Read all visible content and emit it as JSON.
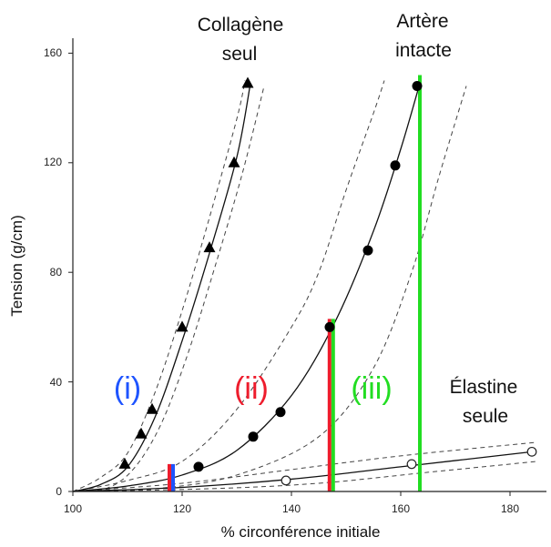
{
  "chart_data": {
    "type": "scatter",
    "xlabel": "% circonférence initiale",
    "ylabel": "Tension (g/cm)",
    "xlim": [
      100,
      185
    ],
    "ylim": [
      0,
      165
    ],
    "x_ticks": [
      "100",
      "120",
      "140",
      "160",
      "180"
    ],
    "y_ticks": [
      "0",
      "40",
      "80",
      "120",
      "160"
    ],
    "series": [
      {
        "name": "Collagène seul",
        "marker": "filled-triangle",
        "points": [
          [
            109.5,
            10
          ],
          [
            112.5,
            21
          ],
          [
            114.5,
            30
          ],
          [
            120,
            60
          ],
          [
            125,
            89
          ],
          [
            129.5,
            120
          ],
          [
            132,
            149
          ]
        ],
        "curve": [
          [
            100,
            0
          ],
          [
            105,
            2.5
          ],
          [
            110,
            9
          ],
          [
            115,
            27
          ],
          [
            120,
            55
          ],
          [
            125,
            87
          ],
          [
            130,
            122
          ],
          [
            132.5,
            149
          ]
        ],
        "band_upper": [
          [
            100,
            0
          ],
          [
            105,
            5
          ],
          [
            110,
            14
          ],
          [
            115,
            36
          ],
          [
            120,
            66
          ],
          [
            125,
            100
          ],
          [
            130,
            136
          ],
          [
            131.5,
            150
          ]
        ],
        "band_lower": [
          [
            100,
            0
          ],
          [
            106,
            1
          ],
          [
            111,
            8
          ],
          [
            116,
            24
          ],
          [
            121,
            50
          ],
          [
            126,
            82
          ],
          [
            131,
            116
          ],
          [
            135,
            148
          ]
        ]
      },
      {
        "name": "Artère intacte",
        "marker": "filled-circle",
        "points": [
          [
            123,
            9
          ],
          [
            133,
            20
          ],
          [
            138,
            29
          ],
          [
            147,
            60
          ],
          [
            154,
            88
          ],
          [
            159,
            119
          ],
          [
            163,
            148
          ]
        ],
        "curve": [
          [
            100,
            0
          ],
          [
            110,
            2
          ],
          [
            120,
            6
          ],
          [
            130,
            15
          ],
          [
            140,
            35
          ],
          [
            148,
            62
          ],
          [
            155,
            95
          ],
          [
            160,
            125
          ],
          [
            163.5,
            149
          ]
        ],
        "band_upper": [
          [
            100,
            0
          ],
          [
            110,
            4
          ],
          [
            120,
            11
          ],
          [
            130,
            30
          ],
          [
            140,
            60
          ],
          [
            145,
            80
          ],
          [
            150,
            110
          ],
          [
            155,
            138
          ],
          [
            157,
            150
          ]
        ],
        "band_lower": [
          [
            100,
            0
          ],
          [
            115,
            1
          ],
          [
            130,
            6
          ],
          [
            145,
            20
          ],
          [
            155,
            45
          ],
          [
            162,
            80
          ],
          [
            167,
            115
          ],
          [
            172,
            148
          ]
        ]
      },
      {
        "name": "Élastine seule",
        "marker": "open-circle",
        "points": [
          [
            139,
            4
          ],
          [
            162,
            10
          ],
          [
            184,
            14.5
          ]
        ],
        "curve": [
          [
            100,
            0
          ],
          [
            120,
            1.5
          ],
          [
            140,
            4.5
          ],
          [
            160,
            9
          ],
          [
            184,
            14.5
          ]
        ],
        "band_upper": [
          [
            100,
            0
          ],
          [
            120,
            3
          ],
          [
            140,
            8
          ],
          [
            160,
            13
          ],
          [
            185,
            18
          ]
        ],
        "band_lower": [
          [
            100,
            0
          ],
          [
            125,
            1
          ],
          [
            145,
            3
          ],
          [
            165,
            7
          ],
          [
            185,
            11
          ]
        ]
      }
    ],
    "curve_labels": [
      {
        "lines": [
          "Collagène",
          "seul"
        ]
      },
      {
        "lines": [
          "Artère",
          "intacte"
        ]
      },
      {
        "lines": [
          "Élastine",
          "seule"
        ]
      }
    ],
    "regions": [
      {
        "label": "(i)",
        "color": "#1e54ff"
      },
      {
        "label": "(ii)",
        "color": "#ee1c2c"
      },
      {
        "label": "(iii)",
        "color": "#22dd22"
      }
    ],
    "vertical_markers": [
      {
        "x": 118,
        "y_top": 10,
        "colors": [
          "#ee1c2c",
          "#1e54ff"
        ]
      },
      {
        "x": 147.3,
        "y_top": 63,
        "colors": [
          "#ee1c2c",
          "#22dd22"
        ]
      },
      {
        "x": 163.5,
        "y_top": 152,
        "colors": [
          "#22dd22"
        ]
      }
    ],
    "grid": false,
    "legend": "none"
  }
}
